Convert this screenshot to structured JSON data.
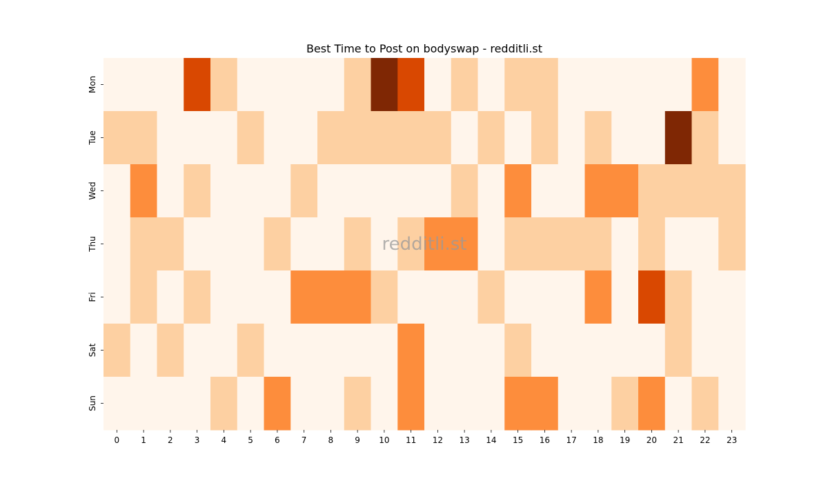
{
  "chart_data": {
    "type": "heatmap",
    "title": "Best Time to Post on bodyswap - redditli.st",
    "watermark": "redditli.st",
    "xlabel": "",
    "ylabel": "",
    "x_ticks": [
      "0",
      "1",
      "2",
      "3",
      "4",
      "5",
      "6",
      "7",
      "8",
      "9",
      "10",
      "11",
      "12",
      "13",
      "14",
      "15",
      "16",
      "17",
      "18",
      "19",
      "20",
      "21",
      "22",
      "23"
    ],
    "y_ticks": [
      "Mon",
      "Tue",
      "Wed",
      "Thu",
      "Fri",
      "Sat",
      "Sun"
    ],
    "colormap": "Oranges",
    "value_range": [
      0,
      4
    ],
    "level_colors": [
      "#fff5eb",
      "#fdd0a2",
      "#fd8d3c",
      "#d94801",
      "#7f2704"
    ],
    "values": [
      [
        0,
        0,
        0,
        3,
        1,
        0,
        0,
        0,
        0,
        1,
        4,
        3,
        0,
        1,
        0,
        1,
        1,
        0,
        0,
        0,
        0,
        0,
        2,
        0
      ],
      [
        1,
        1,
        0,
        0,
        0,
        1,
        0,
        0,
        1,
        1,
        1,
        1,
        1,
        0,
        1,
        0,
        1,
        0,
        1,
        0,
        0,
        4,
        1,
        0
      ],
      [
        0,
        2,
        0,
        1,
        0,
        0,
        0,
        1,
        0,
        0,
        0,
        0,
        0,
        1,
        0,
        2,
        0,
        0,
        2,
        2,
        1,
        1,
        1,
        1
      ],
      [
        0,
        1,
        1,
        0,
        0,
        0,
        1,
        0,
        0,
        1,
        0,
        1,
        2,
        2,
        0,
        1,
        1,
        1,
        1,
        0,
        1,
        0,
        0,
        1
      ],
      [
        0,
        1,
        0,
        1,
        0,
        0,
        0,
        2,
        2,
        2,
        1,
        0,
        0,
        0,
        1,
        0,
        0,
        0,
        2,
        0,
        3,
        1,
        0,
        0
      ],
      [
        1,
        0,
        1,
        0,
        0,
        1,
        0,
        0,
        0,
        0,
        0,
        2,
        0,
        0,
        0,
        1,
        0,
        0,
        0,
        0,
        0,
        1,
        0,
        0
      ],
      [
        0,
        0,
        0,
        0,
        1,
        0,
        2,
        0,
        0,
        1,
        0,
        2,
        0,
        0,
        0,
        2,
        2,
        0,
        0,
        1,
        2,
        0,
        1,
        0
      ]
    ],
    "grid": false,
    "legend": "none"
  }
}
